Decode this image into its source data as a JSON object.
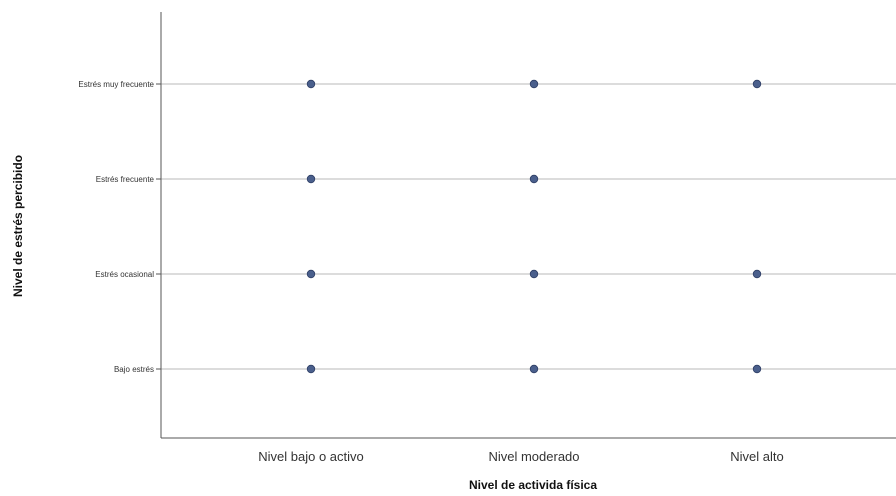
{
  "chart_data": {
    "type": "scatter",
    "title": "",
    "xlabel": "Nivel de activida física",
    "ylabel": "Nivel de estrés percibido",
    "x_categories": [
      "Nivel bajo o activo",
      "Nivel moderado",
      "Nivel alto"
    ],
    "y_categories": [
      "Bajo estrés",
      "Estrés ocasional",
      "Estrés frecuente",
      "Estrés muy frecuente"
    ],
    "points": [
      {
        "x": "Nivel bajo o activo",
        "y": "Estrés muy frecuente"
      },
      {
        "x": "Nivel moderado",
        "y": "Estrés muy frecuente"
      },
      {
        "x": "Nivel alto",
        "y": "Estrés muy frecuente"
      },
      {
        "x": "Nivel bajo o activo",
        "y": "Estrés frecuente"
      },
      {
        "x": "Nivel moderado",
        "y": "Estrés frecuente"
      },
      {
        "x": "Nivel bajo o activo",
        "y": "Estrés ocasional"
      },
      {
        "x": "Nivel moderado",
        "y": "Estrés ocasional"
      },
      {
        "x": "Nivel alto",
        "y": "Estrés ocasional"
      },
      {
        "x": "Nivel bajo o activo",
        "y": "Bajo estrés"
      },
      {
        "x": "Nivel moderado",
        "y": "Bajo estrés"
      },
      {
        "x": "Nivel alto",
        "y": "Bajo estrés"
      }
    ],
    "grid": "horizontal",
    "marker_color": "#4a5f8c"
  }
}
